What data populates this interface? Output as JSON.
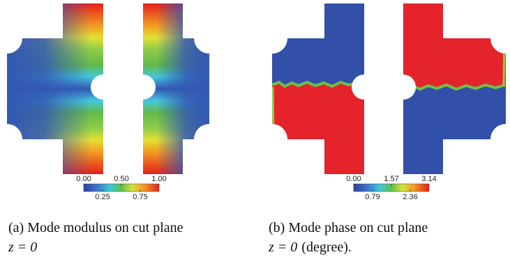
{
  "panels": [
    {
      "colorbar": {
        "ticks_top": [
          "0.00",
          "0.50",
          "1.00"
        ],
        "ticks_bottom": [
          "0.25",
          "0.75"
        ]
      },
      "caption": {
        "text": "(a) Mode modulus on cut plane",
        "math": "z = 0"
      }
    },
    {
      "colorbar": {
        "ticks_top": [
          "0.00",
          "1.57",
          "3.14"
        ],
        "ticks_bottom": [
          "0.79",
          "2.36"
        ]
      },
      "caption": {
        "text": "(b) Mode phase on cut plane",
        "math": "z = 0",
        "suffix": "(degree)."
      }
    }
  ]
}
